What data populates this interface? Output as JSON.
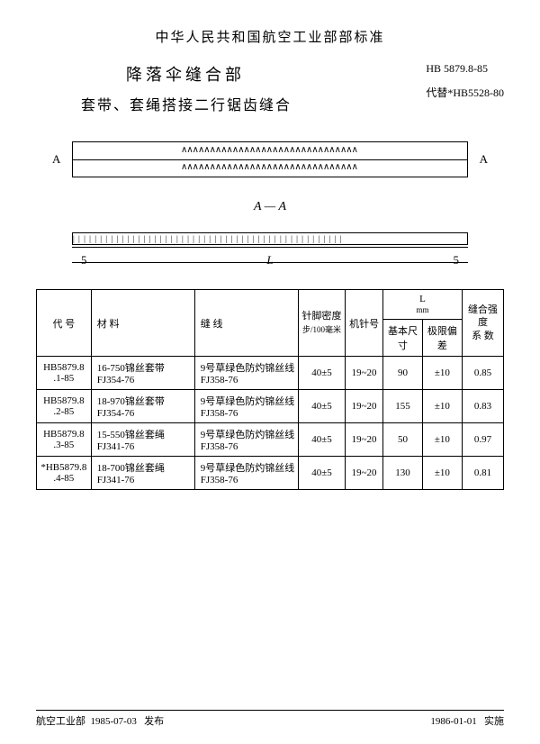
{
  "header": {
    "org": "中华人民共和国航空工业部部标准"
  },
  "title": {
    "main": "降落伞缝合部",
    "sub": "套带、套绳搭接二行锯齿缝合"
  },
  "std": {
    "code": "HB 5879.8-85",
    "replace": "代替*HB5528-80"
  },
  "diagram": {
    "mark_a": "A",
    "section": "A — A",
    "dim_5": "5",
    "dim_L": "L",
    "zigzag": "∧∧∧∧∧∧∧∧∧∧∧∧∧∧∧∧∧∧∧∧∧∧∧∧∧∧∧∧∧∧∧",
    "hatch": "| | | | | | | | | | | | | | | | | | | | | | | | | | | | | | | | | | | | | | | | | | | | | | | | | |"
  },
  "table": {
    "headers": {
      "code": "代 号",
      "material": "材 料",
      "thread": "缝 线",
      "density": "针脚密度",
      "density_unit": "步/100毫米",
      "needle": "机针号",
      "L": "L",
      "L_unit": "mm",
      "L_basic": "基本尺寸",
      "L_tol": "极限偏差",
      "strength": "缝合强度",
      "strength_sub": "系 数"
    },
    "rows": [
      {
        "code": "HB5879.8\n.1-85",
        "material": "16-750锦丝套带\nFJ354-76",
        "thread": "9号草绿色防灼锦丝线\nFJ358-76",
        "density": "40±5",
        "needle": "19~20",
        "l_basic": "90",
        "l_tol": "±10",
        "strength": "0.85"
      },
      {
        "code": "HB5879.8\n.2-85",
        "material": "18-970锦丝套带\nFJ354-76",
        "thread": "9号草绿色防灼锦丝线\nFJ358-76",
        "density": "40±5",
        "needle": "19~20",
        "l_basic": "155",
        "l_tol": "±10",
        "strength": "0.83"
      },
      {
        "code": "HB5879.8\n.3-85",
        "material": "15-550锦丝套绳\nFJ341-76",
        "thread": "9号草绿色防灼锦丝线\nFJ358-76",
        "density": "40±5",
        "needle": "19~20",
        "l_basic": "50",
        "l_tol": "±10",
        "strength": "0.97"
      },
      {
        "code": "*HB5879.8\n.4-85",
        "material": "18-700锦丝套绳\nFJ341-76",
        "thread": "9号草绿色防灼锦丝线\nFJ358-76",
        "density": "40±5",
        "needle": "19~20",
        "l_basic": "130",
        "l_tol": "±10",
        "strength": "0.81"
      }
    ]
  },
  "footer": {
    "issuer": "航空工业部",
    "issue_date": "1985-07-03",
    "issue_label": "发布",
    "effect_date": "1986-01-01",
    "effect_label": "实施"
  }
}
